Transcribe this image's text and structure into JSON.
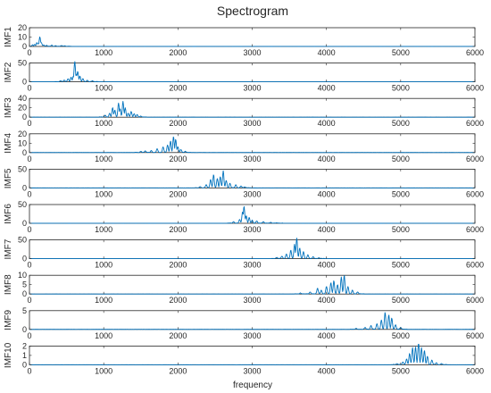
{
  "chart_data": {
    "type": "line",
    "title": "Spectrogram",
    "xlabel": "frequency",
    "xlim": [
      0,
      6000
    ],
    "xticks": [
      0,
      1000,
      2000,
      3000,
      4000,
      5000,
      6000
    ],
    "color": "#0072BD",
    "panels": [
      {
        "ylabel": "IMF1",
        "ylim": [
          0,
          20
        ],
        "yticks": [
          0,
          10,
          20
        ],
        "peaks": [
          [
            40,
            1.5
          ],
          [
            70,
            2
          ],
          [
            100,
            4
          ],
          [
            120,
            3
          ],
          [
            140,
            10
          ],
          [
            160,
            4
          ],
          [
            190,
            1.5
          ],
          [
            230,
            1
          ],
          [
            300,
            1.2
          ],
          [
            350,
            0.6
          ],
          [
            430,
            0.8
          ],
          [
            480,
            0.5
          ]
        ]
      },
      {
        "ylabel": "IMF2",
        "ylim": [
          0,
          50
        ],
        "yticks": [
          0,
          50
        ],
        "peaks": [
          [
            420,
            2
          ],
          [
            470,
            4
          ],
          [
            520,
            8
          ],
          [
            560,
            12
          ],
          [
            590,
            14
          ],
          [
            610,
            55
          ],
          [
            630,
            20
          ],
          [
            650,
            28
          ],
          [
            680,
            15
          ],
          [
            720,
            8
          ],
          [
            780,
            4
          ],
          [
            850,
            2
          ]
        ]
      },
      {
        "ylabel": "IMF3",
        "ylim": [
          0,
          40
        ],
        "yticks": [
          0,
          20,
          40
        ],
        "peaks": [
          [
            1020,
            4
          ],
          [
            1080,
            8
          ],
          [
            1120,
            20
          ],
          [
            1150,
            15
          ],
          [
            1200,
            30
          ],
          [
            1220,
            18
          ],
          [
            1260,
            33
          ],
          [
            1290,
            20
          ],
          [
            1330,
            8
          ],
          [
            1370,
            12
          ],
          [
            1410,
            7
          ],
          [
            1450,
            5
          ],
          [
            1500,
            2
          ]
        ]
      },
      {
        "ylabel": "IMF4",
        "ylim": [
          0,
          20
        ],
        "yticks": [
          0,
          10,
          20
        ],
        "peaks": [
          [
            1500,
            1
          ],
          [
            1560,
            1.5
          ],
          [
            1640,
            2
          ],
          [
            1720,
            4
          ],
          [
            1800,
            6
          ],
          [
            1860,
            8
          ],
          [
            1900,
            12
          ],
          [
            1940,
            17
          ],
          [
            1970,
            14
          ],
          [
            2000,
            6
          ],
          [
            2040,
            3
          ],
          [
            2100,
            1
          ]
        ]
      },
      {
        "ylabel": "IMF5",
        "ylim": [
          0,
          50
        ],
        "yticks": [
          0,
          50
        ],
        "peaks": [
          [
            2300,
            3
          ],
          [
            2380,
            8
          ],
          [
            2440,
            22
          ],
          [
            2480,
            35
          ],
          [
            2530,
            25
          ],
          [
            2570,
            30
          ],
          [
            2610,
            45
          ],
          [
            2650,
            20
          ],
          [
            2700,
            12
          ],
          [
            2780,
            8
          ],
          [
            2850,
            5
          ],
          [
            2900,
            2
          ]
        ]
      },
      {
        "ylabel": "IMF6",
        "ylim": [
          0,
          50
        ],
        "yticks": [
          0,
          50
        ],
        "peaks": [
          [
            2750,
            4
          ],
          [
            2830,
            10
          ],
          [
            2870,
            30
          ],
          [
            2890,
            45
          ],
          [
            2920,
            20
          ],
          [
            2960,
            15
          ],
          [
            3000,
            8
          ],
          [
            3060,
            6
          ],
          [
            3150,
            4
          ],
          [
            3250,
            2
          ],
          [
            3330,
            1
          ]
        ]
      },
      {
        "ylabel": "IMF7",
        "ylim": [
          0,
          50
        ],
        "yticks": [
          0,
          50
        ],
        "peaks": [
          [
            3330,
            3
          ],
          [
            3400,
            6
          ],
          [
            3460,
            12
          ],
          [
            3520,
            22
          ],
          [
            3570,
            38
          ],
          [
            3600,
            55
          ],
          [
            3640,
            28
          ],
          [
            3690,
            18
          ],
          [
            3750,
            10
          ],
          [
            3820,
            5
          ],
          [
            3900,
            2
          ]
        ]
      },
      {
        "ylabel": "IMF8",
        "ylim": [
          0,
          10
        ],
        "yticks": [
          0,
          5,
          10
        ],
        "peaks": [
          [
            3650,
            0.5
          ],
          [
            3780,
            1
          ],
          [
            3880,
            3
          ],
          [
            3930,
            2
          ],
          [
            4000,
            4
          ],
          [
            4060,
            6
          ],
          [
            4100,
            7
          ],
          [
            4150,
            5
          ],
          [
            4200,
            9
          ],
          [
            4240,
            10
          ],
          [
            4290,
            4
          ],
          [
            4350,
            2
          ],
          [
            4420,
            1
          ]
        ]
      },
      {
        "ylabel": "IMF9",
        "ylim": [
          0,
          5
        ],
        "yticks": [
          0,
          5
        ],
        "peaks": [
          [
            4400,
            0.2
          ],
          [
            4520,
            0.5
          ],
          [
            4600,
            1
          ],
          [
            4680,
            1.5
          ],
          [
            4740,
            2.5
          ],
          [
            4790,
            4.5
          ],
          [
            4840,
            3.8
          ],
          [
            4880,
            3
          ],
          [
            4930,
            1.2
          ],
          [
            5000,
            0.5
          ]
        ]
      },
      {
        "ylabel": "IMF10",
        "ylim": [
          0,
          2
        ],
        "yticks": [
          0,
          1,
          2
        ],
        "peaks": [
          [
            4950,
            0.1
          ],
          [
            5030,
            0.3
          ],
          [
            5080,
            0.6
          ],
          [
            5120,
            1.2
          ],
          [
            5160,
            1.8
          ],
          [
            5200,
            1.9
          ],
          [
            5240,
            2.4
          ],
          [
            5280,
            1.8
          ],
          [
            5320,
            1.5
          ],
          [
            5360,
            0.9
          ],
          [
            5420,
            0.5
          ],
          [
            5480,
            0.2
          ],
          [
            5550,
            0.1
          ]
        ]
      }
    ]
  }
}
